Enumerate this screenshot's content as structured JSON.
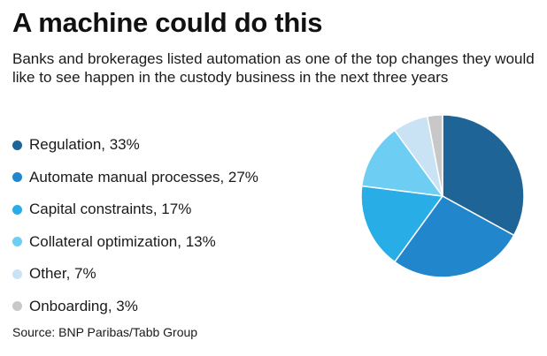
{
  "title": "A machine could do this",
  "subtitle": "Banks and brokerages listed automation as one of the top changes they would like to see happen in the custody business in the next three years",
  "source": "Source: BNP Paribas/Tabb Group",
  "chart_data": {
    "type": "pie",
    "title": "A machine could do this",
    "subtitle": "Banks and brokerages listed automation as one of the top changes they would like to see happen in the custody business in the next three years",
    "legend_position": "left",
    "slices": [
      {
        "label": "Regulation, 33%",
        "name": "Regulation",
        "value": 33,
        "color": "#1f6497"
      },
      {
        "label": "Automate manual processes, 27%",
        "name": "Automate manual processes",
        "value": 27,
        "color": "#2186cc"
      },
      {
        "label": "Capital constraints, 17%",
        "name": "Capital constraints",
        "value": 17,
        "color": "#29ade6"
      },
      {
        "label": "Collateral optimization, 13%",
        "name": "Collateral optimization",
        "value": 13,
        "color": "#6ecdf3"
      },
      {
        "label": "Other, 7%",
        "name": "Other",
        "value": 7,
        "color": "#c9e2f4"
      },
      {
        "label": "Onboarding, 3%",
        "name": "Onboarding",
        "value": 3,
        "color": "#c8c8c8"
      }
    ]
  }
}
